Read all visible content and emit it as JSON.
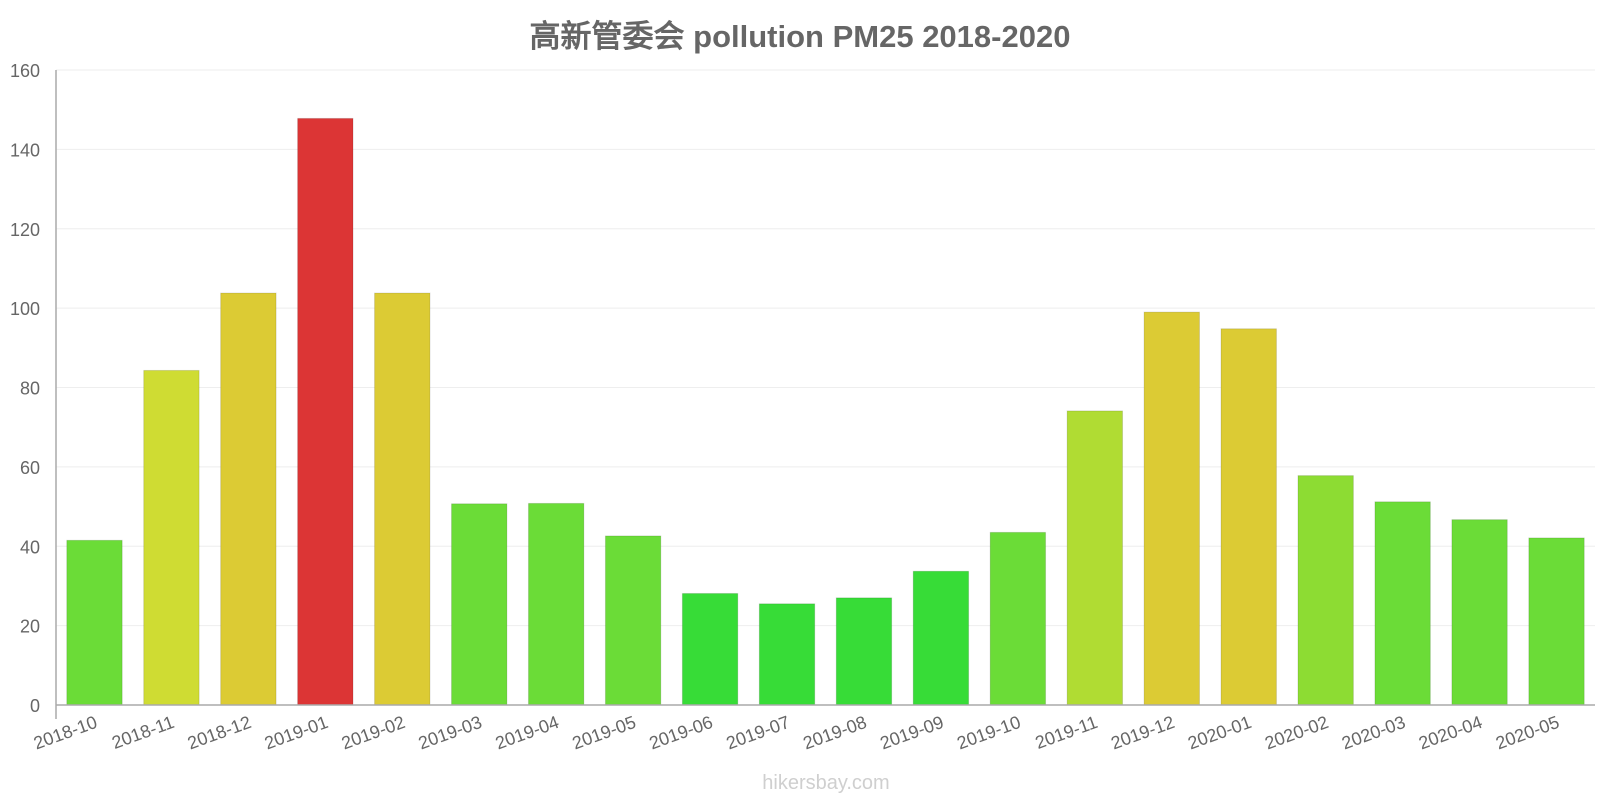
{
  "chart_data": {
    "type": "bar",
    "title": "高新管委会 pollution PM25 2018-2020",
    "xlabel": "",
    "ylabel": "",
    "ylim": [
      0,
      160
    ],
    "yticks": [
      0,
      20,
      40,
      60,
      80,
      100,
      120,
      140,
      160
    ],
    "grid": true,
    "categories": [
      "2018-10",
      "2018-11",
      "2018-12",
      "2019-01",
      "2019-02",
      "2019-03",
      "2019-04",
      "2019-05",
      "2019-06",
      "2019-07",
      "2019-08",
      "2019-09",
      "2019-10",
      "2019-11",
      "2019-12",
      "2020-01",
      "2020-02",
      "2020-03",
      "2020-04",
      "2020-05"
    ],
    "values": [
      41.5,
      84.3,
      103.8,
      147.8,
      103.8,
      50.7,
      50.8,
      42.6,
      28.1,
      25.5,
      27.0,
      33.7,
      43.5,
      74.1,
      99.0,
      94.8,
      57.8,
      51.2,
      46.7,
      42.1
    ],
    "colors": [
      "#6bdc37",
      "#cfdc33",
      "#dccb34",
      "#dc3535",
      "#dccb34",
      "#6bdc37",
      "#6bdc37",
      "#6bdc37",
      "#37dc37",
      "#37dc37",
      "#37dc37",
      "#37dc37",
      "#6bdc37",
      "#b0dc33",
      "#dccb34",
      "#dccb34",
      "#8ddc33",
      "#6bdc37",
      "#6bdc37",
      "#6bdc37"
    ]
  },
  "watermark": "hikersbay.com"
}
